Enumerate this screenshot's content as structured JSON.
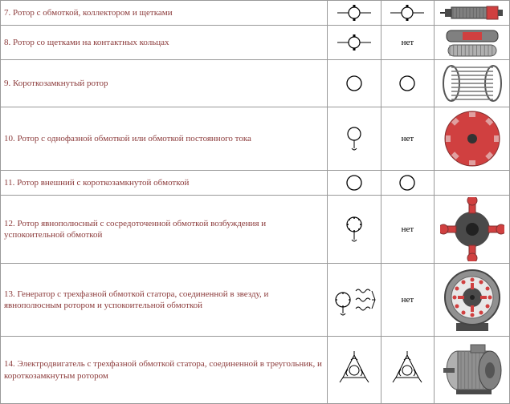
{
  "colors": {
    "text": "#8b3a3a",
    "border": "#999999",
    "black": "#000000",
    "red": "#d04040",
    "darkgray": "#4a4a4a",
    "midgray": "#808080",
    "lightgray": "#b0b0b0",
    "steel": "#909090"
  },
  "net_label": "нет",
  "rows": [
    {
      "num": "7",
      "desc": "7. Ротор с обмоткой, коллектором и щетками",
      "h": 30,
      "sym1": "rotor-brush",
      "sym2": "rotor-brush",
      "img": "commutator-rotor"
    },
    {
      "num": "8",
      "desc": "8. Ротор со щетками на контактных кольцах",
      "h": 42,
      "sym1": "rotor-brush",
      "sym2": "net",
      "img": "slip-ring-rotor"
    },
    {
      "num": "9",
      "desc": "9. Короткозамкнутый ротор",
      "h": 58,
      "sym1": "circle",
      "sym2": "circle",
      "img": "squirrel-cage"
    },
    {
      "num": "10",
      "desc": "10. Ротор с однофазной обмоткой или обмоткой постоянного тока",
      "h": 78,
      "sym1": "circle-tail",
      "sym2": "net",
      "img": "disc-rotor"
    },
    {
      "num": "11",
      "desc": "11. Ротор внешний с короткозамкнутой обмоткой",
      "h": 30,
      "sym1": "circle",
      "sym2": "circle",
      "img": "blank"
    },
    {
      "num": "12",
      "desc": "12. Ротор явнополюсный с сосредоточенной обмоткой возбуждения и успокоительной обмоткой",
      "h": 84,
      "sym1": "circle-dots-tail",
      "sym2": "net",
      "img": "cross-rotor"
    },
    {
      "num": "13",
      "desc": "13. Генератор с трехфазной обмоткой статора, соединенной в звезду, и явнополюсным ротором и успокоительной обмоткой",
      "h": 90,
      "sym1": "star-gen",
      "sym2": "net",
      "img": "generator-cutaway"
    },
    {
      "num": "14",
      "desc": "14. Электродвигатель с трехфазной обмоткой статора, соединенной в треугольник, и короткозамкнутым ротором",
      "h": 84,
      "sym1": "delta-motor",
      "sym2": "delta-motor",
      "img": "motor-3d"
    }
  ]
}
